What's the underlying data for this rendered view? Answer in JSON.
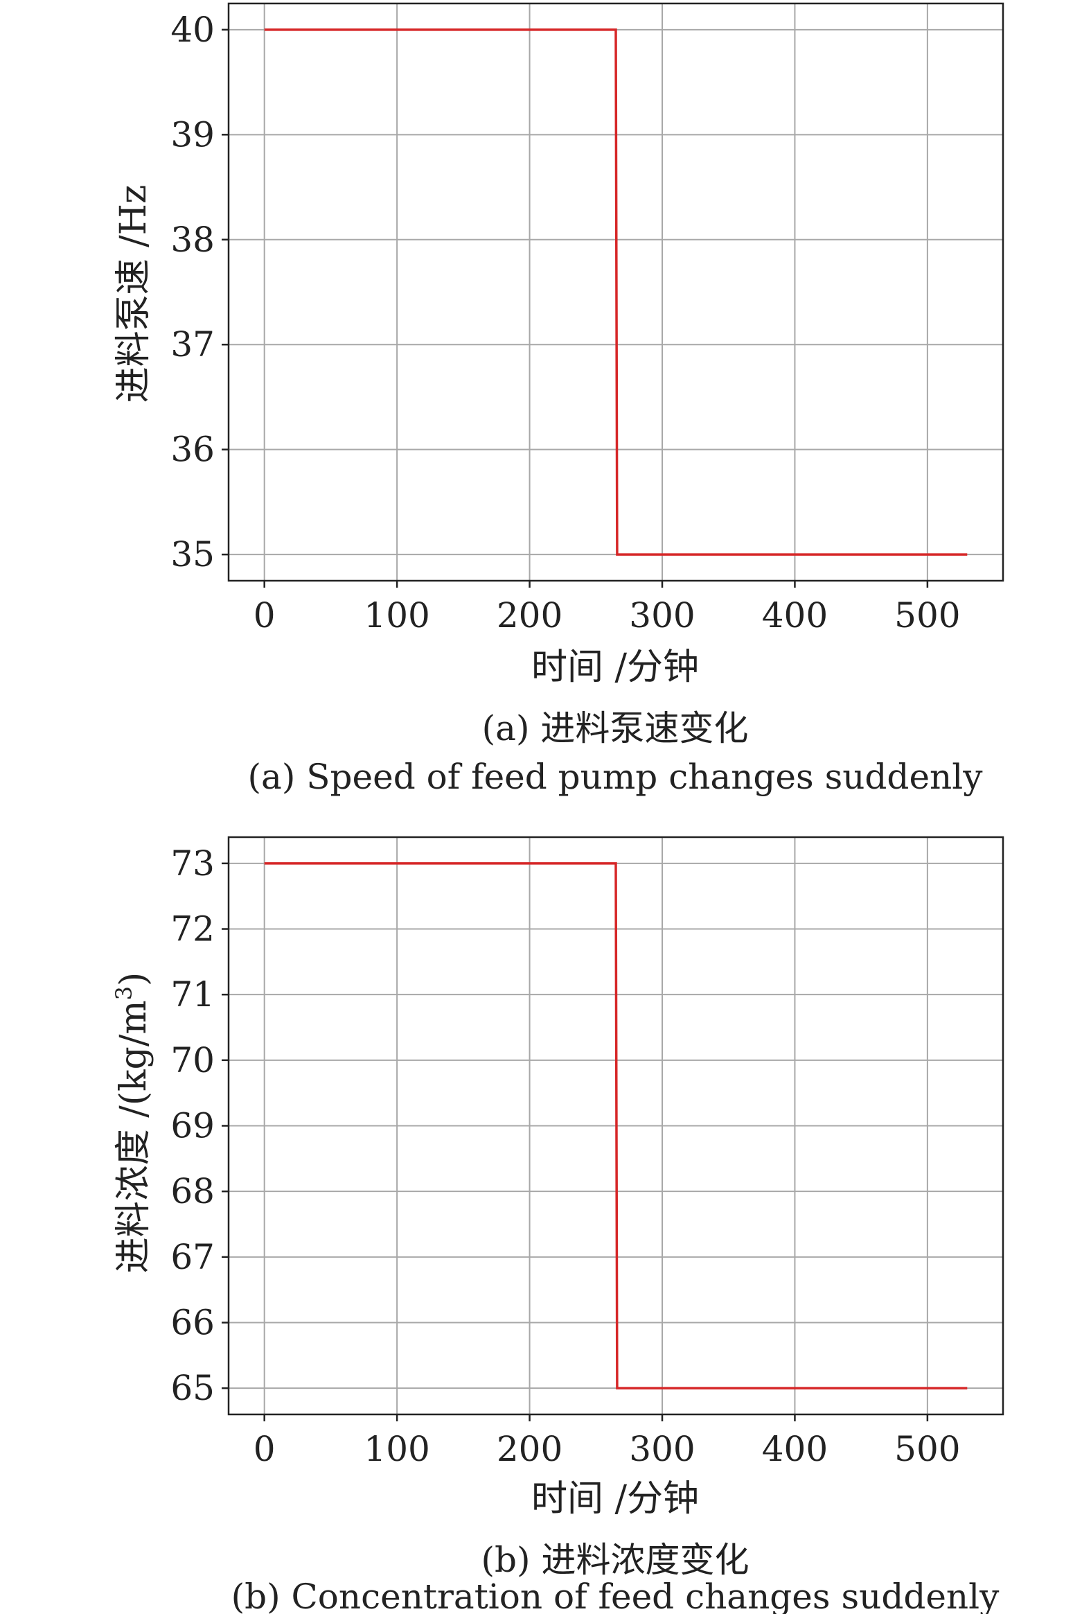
{
  "charts": [
    {
      "caption_cn": "(a) 进料泵速变化",
      "caption_en": "(a) Speed of feed pump changes suddenly",
      "xlabel": "时间 /分钟",
      "ylabel": "进料泵速 /Hz"
    },
    {
      "caption_cn": "(b) 进料浓度变化",
      "caption_en": "(b) Concentration of feed changes suddenly",
      "xlabel": "时间 /分钟",
      "ylabel_main": "进料浓度 /(kg/m",
      "ylabel_sup": "3",
      "ylabel_end": ")"
    }
  ],
  "chart_data": [
    {
      "type": "line",
      "xlim": [
        -27,
        557
      ],
      "ylim": [
        34.75,
        40.25
      ],
      "xticks": [
        0,
        100,
        200,
        300,
        400,
        500
      ],
      "yticks": [
        35,
        36,
        37,
        38,
        39,
        40
      ],
      "grid": true,
      "series_color": "#d62728",
      "series": [
        {
          "x": [
            0,
            265,
            266,
            530
          ],
          "y": [
            40,
            40,
            35,
            35
          ]
        }
      ]
    },
    {
      "type": "line",
      "xlim": [
        -27,
        557
      ],
      "ylim": [
        64.6,
        73.4
      ],
      "xticks": [
        0,
        100,
        200,
        300,
        400,
        500
      ],
      "yticks": [
        65,
        66,
        67,
        68,
        69,
        70,
        71,
        72,
        73
      ],
      "grid": true,
      "series_color": "#d62728",
      "series": [
        {
          "x": [
            0,
            265,
            266,
            530
          ],
          "y": [
            73,
            73,
            65,
            65
          ]
        }
      ]
    }
  ]
}
